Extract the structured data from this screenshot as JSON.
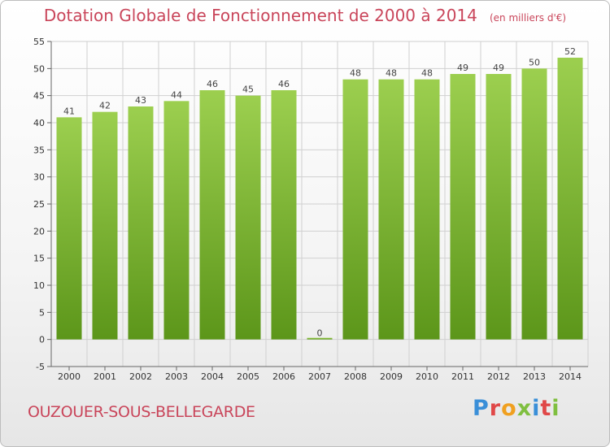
{
  "title": "Dotation Globale de Fonctionnement de 2000 à 2014",
  "subtitle": "(en milliers d'€)",
  "commune": "OUZOUER-SOUS-BELLEGARDE",
  "logo": {
    "letters": [
      "P",
      "r",
      "o",
      "x",
      "i",
      "t",
      "i"
    ],
    "colors": [
      "#3a8fd8",
      "#e04848",
      "#f0a020",
      "#7fbf3f",
      "#3a8fd8",
      "#e04848",
      "#7fbf3f"
    ]
  },
  "chart_data": {
    "type": "bar",
    "title": "Dotation Globale de Fonctionnement de 2000 à 2014",
    "subtitle": "(en milliers d'€)",
    "categories": [
      "2000",
      "2001",
      "2002",
      "2003",
      "2004",
      "2005",
      "2006",
      "2007",
      "2008",
      "2009",
      "2010",
      "2011",
      "2012",
      "2013",
      "2014"
    ],
    "values": [
      41,
      42,
      43,
      44,
      46,
      45,
      46,
      0,
      48,
      48,
      48,
      49,
      49,
      50,
      52
    ],
    "ylim": [
      -5,
      55
    ],
    "yticks": [
      -5,
      0,
      5,
      10,
      15,
      20,
      25,
      30,
      35,
      40,
      45,
      50,
      55
    ],
    "grid": true,
    "colors": {
      "bar_light": "#9ccf4f",
      "bar_dark": "#5c961a",
      "grid": "#d0d0d0"
    }
  }
}
